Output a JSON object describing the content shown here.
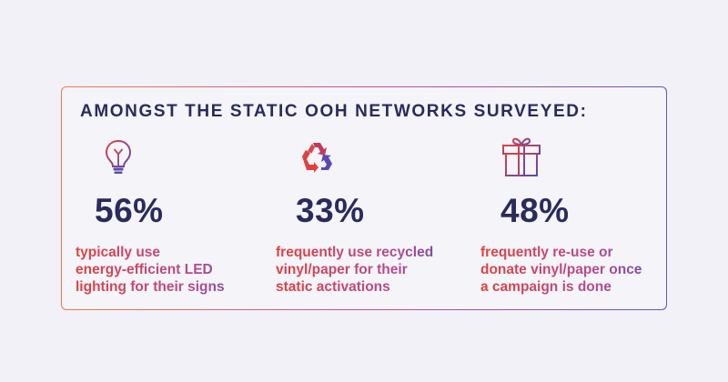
{
  "infographic": {
    "heading": "AMONGST THE STATIC OOH NETWORKS SURVEYED:",
    "stats": [
      {
        "icon": "lightbulb-icon",
        "value": "56%",
        "lines": [
          "typically use",
          "energy-efficient LED",
          "lighting for their signs"
        ]
      },
      {
        "icon": "recycle-icon",
        "value": "33%",
        "lines": [
          "frequently use recycled",
          "vinyl/paper for their",
          "static activations"
        ]
      },
      {
        "icon": "gift-icon",
        "value": "48%",
        "lines": [
          "frequently re-use or",
          "donate vinyl/paper once",
          "a campaign is done"
        ]
      }
    ]
  },
  "colors": {
    "background": "#f1f1f7",
    "heading": "#2a2a5c",
    "gradient_start": "#e0413f",
    "gradient_end": "#5a4ab0"
  }
}
